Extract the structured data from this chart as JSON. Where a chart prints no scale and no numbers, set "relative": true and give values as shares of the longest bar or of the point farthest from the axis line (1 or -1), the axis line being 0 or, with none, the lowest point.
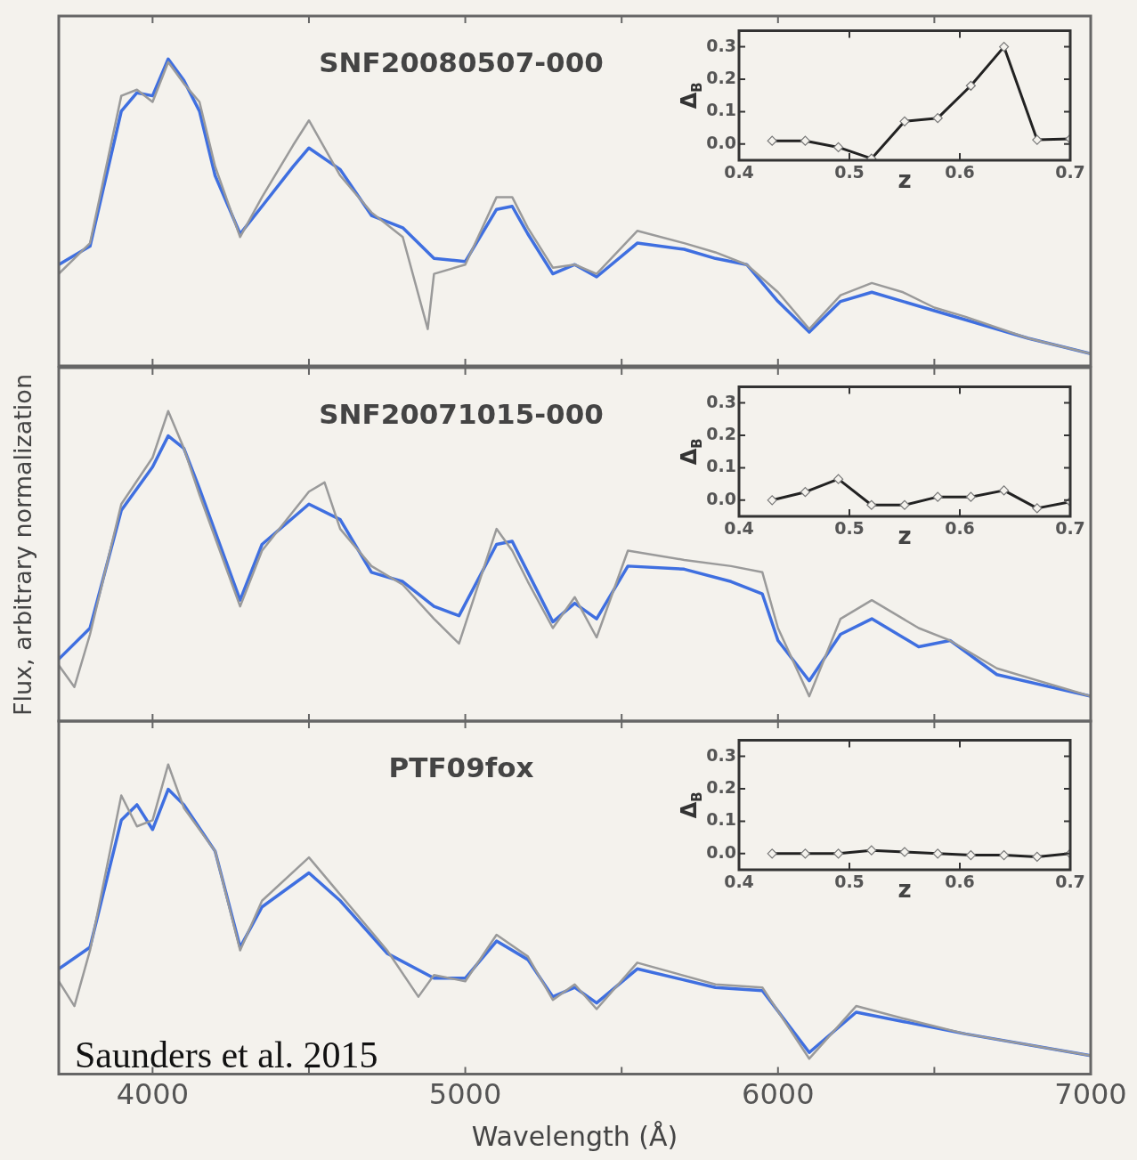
{
  "chart_data": [
    {
      "type": "line",
      "title": "SNF20080507-000",
      "relative": true,
      "xlim": [
        3700,
        7000
      ],
      "xticks": [
        4000,
        4500,
        5000,
        5500,
        6000,
        6500,
        7000
      ],
      "tick_labels": false,
      "grid": false,
      "legend": false,
      "marker": "none",
      "line_style": "solid",
      "series": [
        {
          "color": "#9a9a9a",
          "x": [
            3700,
            3800,
            3900,
            3950,
            4000,
            4050,
            4100,
            4150,
            4200,
            4280,
            4350,
            4450,
            4500,
            4600,
            4700,
            4800,
            4880,
            4900,
            5000,
            5100,
            5150,
            5200,
            5280,
            5350,
            5420,
            5550,
            5700,
            5800,
            5900,
            6000,
            6100,
            6200,
            6300,
            6400,
            6500,
            6600,
            6800,
            7000
          ],
          "values": [
            0.3,
            0.4,
            0.88,
            0.9,
            0.86,
            0.99,
            0.92,
            0.86,
            0.65,
            0.42,
            0.55,
            0.72,
            0.8,
            0.62,
            0.5,
            0.42,
            0.12,
            0.3,
            0.33,
            0.55,
            0.55,
            0.45,
            0.32,
            0.33,
            0.3,
            0.44,
            0.4,
            0.37,
            0.33,
            0.24,
            0.12,
            0.23,
            0.27,
            0.24,
            0.19,
            0.16,
            0.09,
            0.04
          ]
        },
        {
          "color": "#3f6fe0",
          "x": [
            3700,
            3800,
            3900,
            3950,
            4000,
            4050,
            4100,
            4150,
            4200,
            4280,
            4350,
            4450,
            4500,
            4600,
            4700,
            4800,
            4900,
            5000,
            5100,
            5150,
            5200,
            5280,
            5350,
            5420,
            5550,
            5700,
            5800,
            5900,
            6000,
            6100,
            6200,
            6300,
            6400,
            6500,
            6600,
            6800,
            7000
          ],
          "values": [
            0.33,
            0.39,
            0.83,
            0.89,
            0.88,
            1.0,
            0.93,
            0.83,
            0.62,
            0.43,
            0.52,
            0.65,
            0.71,
            0.64,
            0.49,
            0.45,
            0.35,
            0.34,
            0.51,
            0.52,
            0.43,
            0.3,
            0.33,
            0.29,
            0.4,
            0.38,
            0.35,
            0.33,
            0.21,
            0.11,
            0.21,
            0.24,
            0.21,
            0.18,
            0.15,
            0.09,
            0.04
          ]
        }
      ]
    },
    {
      "type": "line",
      "xlabel": "z",
      "ylabel": "Δ$_{B}$",
      "xlim": [
        0.4,
        0.7
      ],
      "xticks": [
        0.4,
        0.5,
        0.6,
        0.7
      ],
      "ylim": [
        -0.05,
        0.35
      ],
      "yticks": [
        {
          "value": 0,
          "label": "0.0"
        },
        {
          "value": 0.1,
          "label": "0.1"
        },
        {
          "value": 0.2,
          "label": "0.2"
        },
        {
          "value": 0.3,
          "label": "0.3"
        }
      ],
      "grid": false,
      "legend": false,
      "marker": "diamond",
      "line_style": "solid",
      "series": [
        {
          "color": "#222222",
          "x": [
            0.43,
            0.46,
            0.49,
            0.52,
            0.55,
            0.58,
            0.61,
            0.64,
            0.67,
            0.7
          ],
          "values": [
            0.01,
            0.01,
            -0.01,
            -0.045,
            0.07,
            0.08,
            0.18,
            0.3,
            0.013,
            0.016
          ]
        }
      ]
    },
    {
      "type": "line",
      "title": "SNF20071015-000",
      "ylabel": "Flux, arbitrary normalization",
      "relative": true,
      "xlim": [
        3700,
        7000
      ],
      "xticks": [
        4000,
        4500,
        5000,
        5500,
        6000,
        6500,
        7000
      ],
      "tick_labels": false,
      "grid": false,
      "legend": false,
      "marker": "none",
      "line_style": "solid",
      "series": [
        {
          "color": "#9a9a9a",
          "x": [
            3700,
            3750,
            3800,
            3900,
            4000,
            4050,
            4100,
            4150,
            4280,
            4350,
            4500,
            4550,
            4600,
            4700,
            4800,
            4900,
            4980,
            5100,
            5150,
            5200,
            5280,
            5350,
            5420,
            5520,
            5700,
            5850,
            5950,
            6000,
            6100,
            6200,
            6300,
            6450,
            6550,
            6700,
            7000
          ],
          "values": [
            0.18,
            0.11,
            0.28,
            0.7,
            0.85,
            1.0,
            0.88,
            0.73,
            0.37,
            0.55,
            0.74,
            0.77,
            0.62,
            0.5,
            0.44,
            0.33,
            0.25,
            0.62,
            0.55,
            0.45,
            0.3,
            0.4,
            0.27,
            0.55,
            0.52,
            0.5,
            0.48,
            0.3,
            0.08,
            0.33,
            0.39,
            0.3,
            0.26,
            0.17,
            0.08
          ]
        },
        {
          "color": "#3f6fe0",
          "x": [
            3700,
            3800,
            3900,
            4000,
            4050,
            4100,
            4150,
            4280,
            4350,
            4500,
            4600,
            4700,
            4800,
            4900,
            4980,
            5100,
            5150,
            5200,
            5280,
            5350,
            5420,
            5520,
            5700,
            5850,
            5950,
            6000,
            6100,
            6200,
            6300,
            6450,
            6550,
            6700,
            7000
          ],
          "values": [
            0.2,
            0.3,
            0.68,
            0.82,
            0.92,
            0.88,
            0.75,
            0.39,
            0.57,
            0.7,
            0.65,
            0.48,
            0.45,
            0.37,
            0.34,
            0.57,
            0.58,
            0.48,
            0.32,
            0.38,
            0.33,
            0.5,
            0.49,
            0.45,
            0.41,
            0.26,
            0.13,
            0.28,
            0.33,
            0.24,
            0.26,
            0.15,
            0.08
          ]
        }
      ]
    },
    {
      "type": "line",
      "xlabel": "z",
      "ylabel": "Δ$_{B}$",
      "xlim": [
        0.4,
        0.7
      ],
      "xticks": [
        0.4,
        0.5,
        0.6,
        0.7
      ],
      "ylim": [
        -0.05,
        0.35
      ],
      "yticks": [
        {
          "value": 0,
          "label": "0.0"
        },
        {
          "value": 0.1,
          "label": "0.1"
        },
        {
          "value": 0.2,
          "label": "0.2"
        },
        {
          "value": 0.3,
          "label": "0.3"
        }
      ],
      "grid": false,
      "legend": false,
      "marker": "diamond",
      "line_style": "solid",
      "series": [
        {
          "color": "#222222",
          "x": [
            0.43,
            0.46,
            0.49,
            0.52,
            0.55,
            0.58,
            0.61,
            0.64,
            0.67,
            0.7
          ],
          "values": [
            0.0,
            0.025,
            0.065,
            -0.015,
            -0.015,
            0.01,
            0.01,
            0.03,
            -0.025,
            -0.005
          ]
        }
      ]
    },
    {
      "type": "line",
      "title": "PTF09fox",
      "xlabel": "Wavelength (Å)",
      "relative": true,
      "xlim": [
        3700,
        7000
      ],
      "xticks": [
        {
          "value": 4000,
          "label": "4000"
        },
        {
          "value": 4500,
          "label": null
        },
        {
          "value": 5000,
          "label": "5000"
        },
        {
          "value": 5500,
          "label": null
        },
        {
          "value": 6000,
          "label": "6000"
        },
        {
          "value": 6500,
          "label": null
        },
        {
          "value": 7000,
          "label": "7000"
        }
      ],
      "tick_labels": "x",
      "grid": false,
      "legend": false,
      "marker": "none",
      "line_style": "solid",
      "annotations": [
        "Saunders et al. 2015"
      ],
      "series": [
        {
          "color": "#9a9a9a",
          "x": [
            3700,
            3750,
            3800,
            3900,
            3950,
            4000,
            4050,
            4100,
            4200,
            4280,
            4350,
            4500,
            4600,
            4750,
            4850,
            4900,
            5000,
            5100,
            5200,
            5280,
            5350,
            5420,
            5550,
            5800,
            5950,
            6100,
            6250,
            6400,
            6600,
            7000
          ],
          "values": [
            0.3,
            0.22,
            0.4,
            0.9,
            0.8,
            0.82,
            1.0,
            0.86,
            0.72,
            0.4,
            0.56,
            0.7,
            0.58,
            0.4,
            0.25,
            0.32,
            0.3,
            0.45,
            0.38,
            0.24,
            0.29,
            0.21,
            0.36,
            0.29,
            0.28,
            0.05,
            0.22,
            0.18,
            0.13,
            0.06
          ]
        },
        {
          "color": "#3f6fe0",
          "x": [
            3700,
            3800,
            3900,
            3950,
            4000,
            4050,
            4100,
            4200,
            4280,
            4350,
            4500,
            4600,
            4750,
            4900,
            5000,
            5100,
            5200,
            5280,
            5350,
            5420,
            5550,
            5800,
            5950,
            6100,
            6250,
            6400,
            6600,
            7000
          ],
          "values": [
            0.34,
            0.41,
            0.82,
            0.87,
            0.79,
            0.92,
            0.87,
            0.72,
            0.41,
            0.54,
            0.65,
            0.56,
            0.39,
            0.31,
            0.31,
            0.43,
            0.37,
            0.25,
            0.28,
            0.23,
            0.34,
            0.28,
            0.27,
            0.07,
            0.2,
            0.17,
            0.13,
            0.06
          ]
        }
      ]
    },
    {
      "type": "line",
      "xlabel": "z",
      "ylabel": "Δ$_{B}$",
      "xlim": [
        0.4,
        0.7
      ],
      "xticks": [
        0.4,
        0.5,
        0.6,
        0.7
      ],
      "ylim": [
        -0.05,
        0.35
      ],
      "yticks": [
        {
          "value": 0,
          "label": "0.0"
        },
        {
          "value": 0.1,
          "label": "0.1"
        },
        {
          "value": 0.2,
          "label": "0.2"
        },
        {
          "value": 0.3,
          "label": "0.3"
        }
      ],
      "grid": false,
      "legend": false,
      "marker": "diamond",
      "line_style": "solid",
      "series": [
        {
          "color": "#222222",
          "x": [
            0.43,
            0.46,
            0.49,
            0.52,
            0.55,
            0.58,
            0.61,
            0.64,
            0.67,
            0.7
          ],
          "values": [
            0.0,
            0.0,
            0.0,
            0.01,
            0.005,
            0.0,
            -0.005,
            -0.005,
            -0.01,
            0.0
          ]
        }
      ]
    }
  ]
}
